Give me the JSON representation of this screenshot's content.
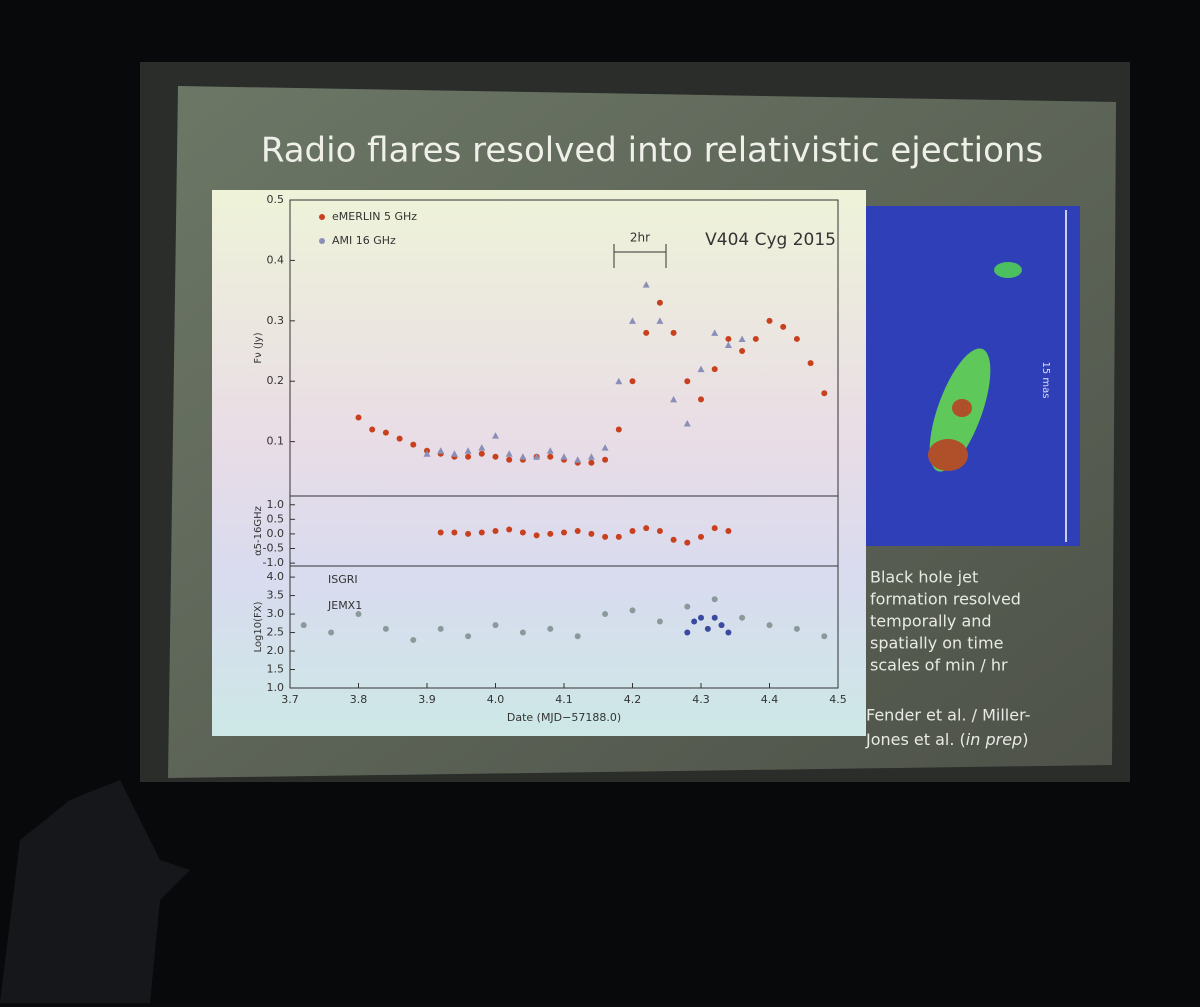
{
  "slide": {
    "title": "Radio flares resolved into relativistic ejections",
    "caption": [
      "Black hole jet",
      "formation resolved",
      "temporally and",
      "spatially on time",
      "scales of min / hr"
    ],
    "credit": [
      "Fender et al. / Miller-",
      "Jones et al. (",
      "in prep",
      ")"
    ],
    "image_scale": "15 mas"
  },
  "chart_data": [
    {
      "type": "scatter",
      "ylabel": "Fν (Jy)",
      "annotations": [
        "2hr",
        "V404 Cyg 2015"
      ],
      "xlim": [
        3.7,
        4.5
      ],
      "ylim": [
        0.01,
        0.5
      ],
      "yticks": [
        0.1,
        0.2,
        0.3,
        0.4,
        0.5
      ],
      "series": [
        {
          "name": "eMERLIN 5 GHz",
          "color": "#c8401e",
          "marker": "circle",
          "x": [
            3.8,
            3.82,
            3.84,
            3.86,
            3.88,
            3.9,
            3.92,
            3.94,
            3.96,
            3.98,
            4.0,
            4.02,
            4.04,
            4.06,
            4.08,
            4.1,
            4.12,
            4.14,
            4.16,
            4.18,
            4.2,
            4.22,
            4.24,
            4.26,
            4.28,
            4.3,
            4.32,
            4.34,
            4.36,
            4.38,
            4.4,
            4.42,
            4.44,
            4.46,
            4.48
          ],
          "values": [
            0.14,
            0.12,
            0.115,
            0.105,
            0.095,
            0.085,
            0.08,
            0.075,
            0.075,
            0.08,
            0.075,
            0.07,
            0.07,
            0.075,
            0.075,
            0.07,
            0.065,
            0.065,
            0.07,
            0.12,
            0.2,
            0.28,
            0.33,
            0.28,
            0.2,
            0.17,
            0.22,
            0.27,
            0.25,
            0.27,
            0.3,
            0.29,
            0.27,
            0.23,
            0.18
          ]
        },
        {
          "name": "AMI 16 GHz",
          "color": "#8a8fb8",
          "marker": "triangle",
          "x": [
            3.9,
            3.92,
            3.94,
            3.96,
            3.98,
            4.0,
            4.02,
            4.04,
            4.06,
            4.08,
            4.1,
            4.12,
            4.14,
            4.16,
            4.18,
            4.2,
            4.22,
            4.24,
            4.26,
            4.28,
            4.3,
            4.32,
            4.34,
            4.36
          ],
          "values": [
            0.08,
            0.085,
            0.08,
            0.085,
            0.09,
            0.11,
            0.08,
            0.075,
            0.075,
            0.085,
            0.075,
            0.07,
            0.075,
            0.09,
            0.2,
            0.3,
            0.36,
            0.3,
            0.17,
            0.13,
            0.22,
            0.28,
            0.26,
            0.27
          ]
        }
      ]
    },
    {
      "type": "scatter",
      "ylabel": "α5-16GHz",
      "xlim": [
        3.7,
        4.5
      ],
      "ylim": [
        -1.1,
        1.3
      ],
      "yticks": [
        {
          "value": 1,
          "label": "1.0"
        },
        0.5,
        {
          "value": 0,
          "label": "0.0"
        },
        -0.5,
        {
          "value": -1,
          "label": "-1.0"
        }
      ],
      "series": [
        {
          "name": null,
          "color": "#c8401e",
          "marker": "circle",
          "x": [
            3.92,
            3.94,
            3.96,
            3.98,
            4.0,
            4.02,
            4.04,
            4.06,
            4.08,
            4.1,
            4.12,
            4.14,
            4.16,
            4.18,
            4.2,
            4.22,
            4.24,
            4.26,
            4.28,
            4.3,
            4.32,
            4.34
          ],
          "values": [
            0.05,
            0.05,
            0.0,
            0.05,
            0.1,
            0.15,
            0.05,
            -0.05,
            0.0,
            0.05,
            0.1,
            0.0,
            -0.1,
            -0.1,
            0.1,
            0.2,
            0.1,
            -0.2,
            -0.3,
            -0.1,
            0.2,
            0.1
          ]
        }
      ]
    },
    {
      "type": "scatter",
      "ylabel": "Log10(FX)",
      "xlabel": "Date (MJD−57188.0)",
      "xlim": [
        3.7,
        4.5
      ],
      "ylim": [
        1,
        4.3
      ],
      "xticks": [
        3.7,
        3.8,
        3.9,
        {
          "value": 4,
          "label": "4.0"
        },
        4.1,
        4.2,
        4.3,
        4.4,
        4.5
      ],
      "yticks": [
        {
          "value": 1,
          "label": "1.0"
        },
        1.5,
        {
          "value": 2,
          "label": "2.0"
        },
        2.5,
        {
          "value": 3,
          "label": "3.0"
        },
        3.5,
        {
          "value": 4,
          "label": "4.0"
        }
      ],
      "series": [
        {
          "name": "ISGRI",
          "color": "#8a9a9a",
          "marker": "circle",
          "x": [
            3.72,
            3.76,
            3.8,
            3.84,
            3.88,
            3.92,
            3.96,
            4.0,
            4.04,
            4.08,
            4.12,
            4.16,
            4.2,
            4.24,
            4.28,
            4.32,
            4.36,
            4.4,
            4.44,
            4.48
          ],
          "values": [
            2.7,
            2.5,
            3.0,
            2.6,
            2.3,
            2.6,
            2.4,
            2.7,
            2.5,
            2.6,
            2.4,
            3.0,
            3.1,
            2.8,
            3.2,
            3.4,
            2.9,
            2.7,
            2.6,
            2.4
          ]
        },
        {
          "name": "JEMX1",
          "color": "#3a4aa0",
          "marker": "circle",
          "x": [
            4.28,
            4.29,
            4.3,
            4.31,
            4.32,
            4.33,
            4.34
          ],
          "values": [
            2.5,
            2.8,
            2.9,
            2.6,
            2.9,
            2.7,
            2.5
          ]
        }
      ]
    }
  ]
}
